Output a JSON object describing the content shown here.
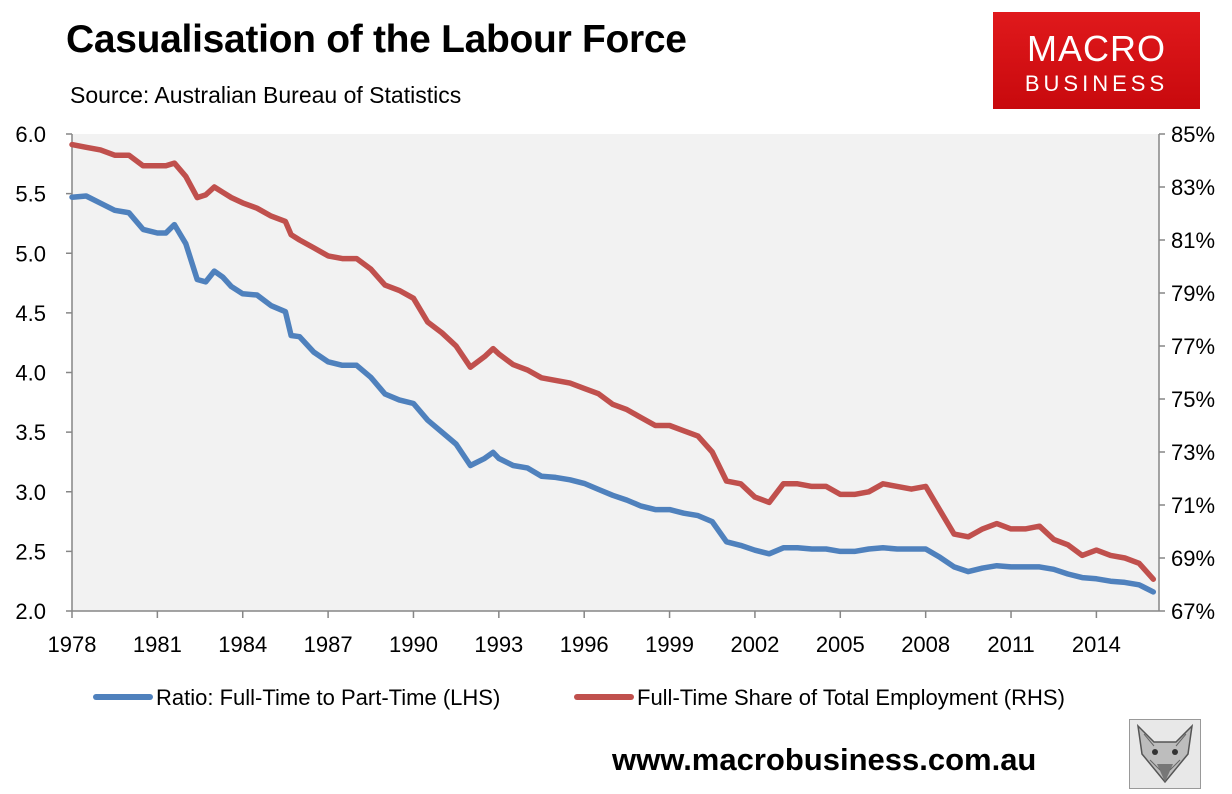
{
  "header": {
    "title": "Casualisation of the Labour Force",
    "source": "Source: Australian Bureau of Statistics"
  },
  "logo": {
    "line1": "MACRO",
    "line2": "BUSINESS"
  },
  "footer": {
    "website": "www.macrobusiness.com.au",
    "fox_icon": "fox-head-icon"
  },
  "colors": {
    "lhs": "#4f81bd",
    "rhs": "#c0504d",
    "plot_bg": "#f2f2f2",
    "logo": "#d7161a"
  },
  "chart_data": {
    "type": "line",
    "title": "Casualisation of the Labour Force",
    "x_ticks": [
      "1978",
      "1981",
      "1984",
      "1987",
      "1990",
      "1993",
      "1996",
      "1999",
      "2002",
      "2005",
      "2008",
      "2011",
      "2014"
    ],
    "xlim": [
      1978,
      2016.2
    ],
    "y_left": {
      "lim": [
        2.0,
        6.0
      ],
      "ticks": [
        "2.0",
        "2.5",
        "3.0",
        "3.5",
        "4.0",
        "4.5",
        "5.0",
        "5.5",
        "6.0"
      ]
    },
    "y_right": {
      "lim": [
        67,
        85
      ],
      "ticks": [
        "67%",
        "69%",
        "71%",
        "73%",
        "75%",
        "77%",
        "79%",
        "81%",
        "83%",
        "85%"
      ]
    },
    "series": [
      {
        "name": "Ratio: Full-Time to Part-Time (LHS)",
        "axis": "left",
        "x": [
          1978,
          1978.5,
          1979,
          1979.5,
          1980,
          1980.5,
          1981,
          1981.3,
          1981.6,
          1982,
          1982.4,
          1982.7,
          1983,
          1983.3,
          1983.6,
          1984,
          1984.5,
          1985,
          1985.5,
          1985.7,
          1986,
          1986.5,
          1987,
          1987.5,
          1988,
          1988.5,
          1989,
          1989.5,
          1990,
          1990.5,
          1991,
          1991.5,
          1992,
          1992.5,
          1992.8,
          1993,
          1993.5,
          1994,
          1994.5,
          1995,
          1995.5,
          1996,
          1996.5,
          1997,
          1997.5,
          1998,
          1998.5,
          1999,
          1999.5,
          2000,
          2000.5,
          2001,
          2001.5,
          2002,
          2002.5,
          2003,
          2003.5,
          2004,
          2004.5,
          2005,
          2005.5,
          2006,
          2006.5,
          2007,
          2007.5,
          2008,
          2008.5,
          2009,
          2009.5,
          2010,
          2010.5,
          2011,
          2011.5,
          2012,
          2012.5,
          2013,
          2013.5,
          2014,
          2014.5,
          2015,
          2015.5,
          2016
        ],
        "values": [
          5.47,
          5.48,
          5.42,
          5.36,
          5.34,
          5.2,
          5.17,
          5.17,
          5.24,
          5.08,
          4.78,
          4.76,
          4.85,
          4.8,
          4.72,
          4.66,
          4.65,
          4.56,
          4.51,
          4.31,
          4.3,
          4.17,
          4.09,
          4.06,
          4.06,
          3.96,
          3.82,
          3.77,
          3.74,
          3.6,
          3.5,
          3.4,
          3.22,
          3.28,
          3.33,
          3.28,
          3.22,
          3.2,
          3.13,
          3.12,
          3.1,
          3.07,
          3.02,
          2.97,
          2.93,
          2.88,
          2.85,
          2.85,
          2.82,
          2.8,
          2.75,
          2.58,
          2.55,
          2.51,
          2.48,
          2.53,
          2.53,
          2.52,
          2.52,
          2.5,
          2.5,
          2.52,
          2.53,
          2.52,
          2.52,
          2.52,
          2.45,
          2.37,
          2.33,
          2.36,
          2.38,
          2.37,
          2.37,
          2.37,
          2.35,
          2.31,
          2.28,
          2.27,
          2.25,
          2.24,
          2.22,
          2.16
        ]
      },
      {
        "name": "Full-Time Share of Total Employment (RHS)",
        "axis": "right",
        "x": [
          1978,
          1978.5,
          1979,
          1979.5,
          1980,
          1980.5,
          1981,
          1981.3,
          1981.6,
          1982,
          1982.4,
          1982.7,
          1983,
          1983.3,
          1983.6,
          1984,
          1984.5,
          1985,
          1985.5,
          1985.7,
          1986,
          1986.5,
          1987,
          1987.5,
          1988,
          1988.5,
          1989,
          1989.5,
          1990,
          1990.5,
          1991,
          1991.5,
          1992,
          1992.5,
          1992.8,
          1993,
          1993.5,
          1994,
          1994.5,
          1995,
          1995.5,
          1996,
          1996.5,
          1997,
          1997.5,
          1998,
          1998.5,
          1999,
          1999.5,
          2000,
          2000.5,
          2001,
          2001.5,
          2002,
          2002.5,
          2003,
          2003.5,
          2004,
          2004.5,
          2005,
          2005.5,
          2006,
          2006.5,
          2007,
          2007.5,
          2008,
          2008.5,
          2009,
          2009.5,
          2010,
          2010.5,
          2011,
          2011.5,
          2012,
          2012.5,
          2013,
          2013.5,
          2014,
          2014.5,
          2015,
          2015.5,
          2016
        ],
        "values": [
          84.6,
          84.5,
          84.4,
          84.2,
          84.2,
          83.8,
          83.8,
          83.8,
          83.9,
          83.4,
          82.6,
          82.7,
          83.0,
          82.8,
          82.6,
          82.4,
          82.2,
          81.9,
          81.7,
          81.2,
          81.0,
          80.7,
          80.4,
          80.3,
          80.3,
          79.9,
          79.3,
          79.1,
          78.8,
          77.9,
          77.5,
          77.0,
          76.2,
          76.6,
          76.9,
          76.7,
          76.3,
          76.1,
          75.8,
          75.7,
          75.6,
          75.4,
          75.2,
          74.8,
          74.6,
          74.3,
          74.0,
          74.0,
          73.8,
          73.6,
          73.0,
          71.9,
          71.8,
          71.3,
          71.1,
          71.8,
          71.8,
          71.7,
          71.7,
          71.4,
          71.4,
          71.5,
          71.8,
          71.7,
          71.6,
          71.7,
          70.8,
          69.9,
          69.8,
          70.1,
          70.3,
          70.1,
          70.1,
          70.2,
          69.7,
          69.5,
          69.1,
          69.3,
          69.1,
          69.0,
          68.8,
          68.2
        ]
      }
    ]
  }
}
